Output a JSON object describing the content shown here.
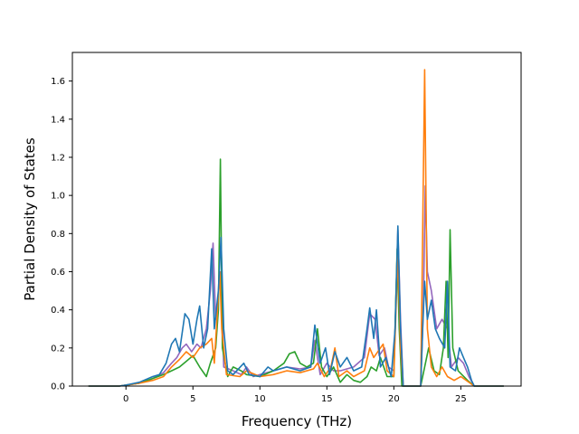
{
  "chart_data": {
    "type": "line",
    "title": "",
    "xlabel": "Frequency (THz)",
    "ylabel": "Partial Density of States",
    "xlim": [
      -4.0,
      29.5
    ],
    "ylim": [
      0.0,
      1.75
    ],
    "xticks": [
      0,
      5,
      10,
      15,
      20,
      25
    ],
    "yticks": [
      0.0,
      0.2,
      0.4,
      0.6,
      0.8,
      1.0,
      1.2,
      1.4,
      1.6
    ],
    "xtick_labels": [
      "0",
      "5",
      "10",
      "15",
      "20",
      "25"
    ],
    "ytick_labels": [
      "0.0",
      "0.2",
      "0.4",
      "0.6",
      "0.8",
      "1.0",
      "1.2",
      "1.4",
      "1.6"
    ],
    "grid": false,
    "legend": "none",
    "series": [
      {
        "color": "#9467bd",
        "points": [
          [
            -2.8,
            0
          ],
          [
            -0.5,
            0
          ],
          [
            0,
            0.005
          ],
          [
            1,
            0.015
          ],
          [
            2,
            0.04
          ],
          [
            2.8,
            0.07
          ],
          [
            3.4,
            0.12
          ],
          [
            3.8,
            0.15
          ],
          [
            4.2,
            0.2
          ],
          [
            4.5,
            0.22
          ],
          [
            4.9,
            0.18
          ],
          [
            5.3,
            0.22
          ],
          [
            5.6,
            0.2
          ],
          [
            6.0,
            0.3
          ],
          [
            6.3,
            0.5
          ],
          [
            6.5,
            0.75
          ],
          [
            6.7,
            0.35
          ],
          [
            7.0,
            0.55
          ],
          [
            7.1,
            0.6
          ],
          [
            7.3,
            0.1
          ],
          [
            8,
            0.08
          ],
          [
            8.6,
            0.06
          ],
          [
            9,
            0.1
          ],
          [
            9.5,
            0.05
          ],
          [
            10,
            0.06
          ],
          [
            11,
            0.08
          ],
          [
            12,
            0.1
          ],
          [
            13,
            0.09
          ],
          [
            13.8,
            0.1
          ],
          [
            14.1,
            0.24
          ],
          [
            14.5,
            0.06
          ],
          [
            15,
            0.12
          ],
          [
            15.5,
            0.08
          ],
          [
            16,
            0.08
          ],
          [
            17,
            0.1
          ],
          [
            17.8,
            0.15
          ],
          [
            18.2,
            0.38
          ],
          [
            18.6,
            0.35
          ],
          [
            18.9,
            0.16
          ],
          [
            19.3,
            0.2
          ],
          [
            19.6,
            0.1
          ],
          [
            20,
            0.08
          ],
          [
            20.3,
            0.82
          ],
          [
            20.5,
            0.35
          ],
          [
            20.7,
            0
          ],
          [
            22.0,
            0
          ],
          [
            22.2,
            0.4
          ],
          [
            22.35,
            1.05
          ],
          [
            22.5,
            0.6
          ],
          [
            22.8,
            0.5
          ],
          [
            23.2,
            0.3
          ],
          [
            23.6,
            0.35
          ],
          [
            24.0,
            0.3
          ],
          [
            24.3,
            0.1
          ],
          [
            24.8,
            0.15
          ],
          [
            25.2,
            0.12
          ],
          [
            25.6,
            0.05
          ],
          [
            26,
            0
          ],
          [
            28.2,
            0
          ]
        ]
      },
      {
        "color": "#2ca02c",
        "points": [
          [
            -2.8,
            0
          ],
          [
            -0.5,
            0
          ],
          [
            0,
            0.005
          ],
          [
            1,
            0.015
          ],
          [
            2,
            0.04
          ],
          [
            2.8,
            0.06
          ],
          [
            3.4,
            0.08
          ],
          [
            4,
            0.1
          ],
          [
            4.5,
            0.13
          ],
          [
            5,
            0.16
          ],
          [
            5.5,
            0.1
          ],
          [
            6.0,
            0.05
          ],
          [
            6.3,
            0.12
          ],
          [
            6.7,
            0.2
          ],
          [
            6.9,
            0.4
          ],
          [
            7.05,
            1.19
          ],
          [
            7.2,
            0.2
          ],
          [
            7.6,
            0.05
          ],
          [
            8,
            0.1
          ],
          [
            8.6,
            0.08
          ],
          [
            9,
            0.06
          ],
          [
            10,
            0.05
          ],
          [
            11,
            0.08
          ],
          [
            11.8,
            0.12
          ],
          [
            12.2,
            0.17
          ],
          [
            12.6,
            0.18
          ],
          [
            13,
            0.12
          ],
          [
            13.5,
            0.1
          ],
          [
            14,
            0.12
          ],
          [
            14.3,
            0.3
          ],
          [
            14.6,
            0.1
          ],
          [
            15,
            0.05
          ],
          [
            15.5,
            0.1
          ],
          [
            16,
            0.02
          ],
          [
            16.5,
            0.06
          ],
          [
            17,
            0.03
          ],
          [
            17.5,
            0.02
          ],
          [
            18,
            0.05
          ],
          [
            18.3,
            0.1
          ],
          [
            18.7,
            0.08
          ],
          [
            19,
            0.15
          ],
          [
            19.5,
            0.05
          ],
          [
            20,
            0.05
          ],
          [
            20.25,
            0.72
          ],
          [
            20.4,
            0.3
          ],
          [
            20.6,
            0
          ],
          [
            22.0,
            0
          ],
          [
            22.3,
            0.1
          ],
          [
            22.6,
            0.2
          ],
          [
            23.0,
            0.08
          ],
          [
            23.4,
            0.06
          ],
          [
            23.7,
            0.2
          ],
          [
            23.9,
            0.55
          ],
          [
            24.05,
            0.15
          ],
          [
            24.2,
            0.82
          ],
          [
            24.4,
            0.2
          ],
          [
            24.8,
            0.08
          ],
          [
            25.5,
            0.03
          ],
          [
            26,
            0
          ],
          [
            28.2,
            0
          ]
        ]
      },
      {
        "color": "#ff7f0e",
        "points": [
          [
            -2.8,
            0
          ],
          [
            -0.5,
            0
          ],
          [
            0,
            0.005
          ],
          [
            1,
            0.015
          ],
          [
            2,
            0.03
          ],
          [
            2.8,
            0.05
          ],
          [
            3.4,
            0.1
          ],
          [
            4,
            0.14
          ],
          [
            4.5,
            0.18
          ],
          [
            5,
            0.15
          ],
          [
            5.5,
            0.2
          ],
          [
            6,
            0.22
          ],
          [
            6.4,
            0.25
          ],
          [
            6.6,
            0.12
          ],
          [
            7.0,
            0.6
          ],
          [
            7.15,
            0.3
          ],
          [
            7.5,
            0.06
          ],
          [
            8.5,
            0.05
          ],
          [
            9,
            0.08
          ],
          [
            10,
            0.05
          ],
          [
            11,
            0.06
          ],
          [
            12,
            0.08
          ],
          [
            13,
            0.07
          ],
          [
            14,
            0.09
          ],
          [
            14.3,
            0.12
          ],
          [
            14.8,
            0.05
          ],
          [
            15.3,
            0.1
          ],
          [
            15.6,
            0.2
          ],
          [
            15.9,
            0.05
          ],
          [
            16.5,
            0.08
          ],
          [
            17,
            0.05
          ],
          [
            17.8,
            0.08
          ],
          [
            18.2,
            0.2
          ],
          [
            18.5,
            0.15
          ],
          [
            19.0,
            0.2
          ],
          [
            19.2,
            0.22
          ],
          [
            19.5,
            0.08
          ],
          [
            20,
            0.05
          ],
          [
            20.3,
            0.7
          ],
          [
            20.5,
            0.2
          ],
          [
            20.7,
            0
          ],
          [
            22.0,
            0
          ],
          [
            22.1,
            0.5
          ],
          [
            22.3,
            1.66
          ],
          [
            22.5,
            0.3
          ],
          [
            22.8,
            0.1
          ],
          [
            23.2,
            0.05
          ],
          [
            23.6,
            0.1
          ],
          [
            24.0,
            0.05
          ],
          [
            24.5,
            0.03
          ],
          [
            25,
            0.05
          ],
          [
            26,
            0
          ],
          [
            28.2,
            0
          ]
        ]
      },
      {
        "color": "#1f77b4",
        "points": [
          [
            -2.8,
            0
          ],
          [
            -0.5,
            0
          ],
          [
            0,
            0.005
          ],
          [
            1,
            0.02
          ],
          [
            2,
            0.05
          ],
          [
            2.5,
            0.06
          ],
          [
            3,
            0.12
          ],
          [
            3.4,
            0.22
          ],
          [
            3.7,
            0.25
          ],
          [
            4.0,
            0.18
          ],
          [
            4.4,
            0.38
          ],
          [
            4.7,
            0.35
          ],
          [
            5,
            0.22
          ],
          [
            5.3,
            0.35
          ],
          [
            5.5,
            0.42
          ],
          [
            5.8,
            0.2
          ],
          [
            6.1,
            0.3
          ],
          [
            6.4,
            0.72
          ],
          [
            6.6,
            0.3
          ],
          [
            6.9,
            0.5
          ],
          [
            7.1,
            0.78
          ],
          [
            7.3,
            0.3
          ],
          [
            7.6,
            0.08
          ],
          [
            8,
            0.06
          ],
          [
            8.8,
            0.12
          ],
          [
            9.2,
            0.06
          ],
          [
            10,
            0.05
          ],
          [
            10.6,
            0.1
          ],
          [
            11,
            0.08
          ],
          [
            12,
            0.1
          ],
          [
            13,
            0.08
          ],
          [
            13.8,
            0.1
          ],
          [
            14.1,
            0.32
          ],
          [
            14.5,
            0.12
          ],
          [
            14.9,
            0.2
          ],
          [
            15.2,
            0.06
          ],
          [
            15.6,
            0.18
          ],
          [
            16,
            0.1
          ],
          [
            16.5,
            0.15
          ],
          [
            17,
            0.08
          ],
          [
            17.6,
            0.1
          ],
          [
            18.0,
            0.3
          ],
          [
            18.2,
            0.41
          ],
          [
            18.5,
            0.25
          ],
          [
            18.7,
            0.4
          ],
          [
            19.0,
            0.1
          ],
          [
            19.4,
            0.15
          ],
          [
            19.8,
            0.05
          ],
          [
            20.1,
            0.3
          ],
          [
            20.3,
            0.84
          ],
          [
            20.5,
            0.3
          ],
          [
            20.7,
            0
          ],
          [
            22.0,
            0
          ],
          [
            22.15,
            0.3
          ],
          [
            22.3,
            0.55
          ],
          [
            22.5,
            0.35
          ],
          [
            22.8,
            0.45
          ],
          [
            23.1,
            0.3
          ],
          [
            23.4,
            0.25
          ],
          [
            23.8,
            0.2
          ],
          [
            24.0,
            0.55
          ],
          [
            24.2,
            0.1
          ],
          [
            24.6,
            0.08
          ],
          [
            24.9,
            0.2
          ],
          [
            25.2,
            0.15
          ],
          [
            25.5,
            0.1
          ],
          [
            25.8,
            0.03
          ],
          [
            26,
            0
          ],
          [
            28.2,
            0
          ]
        ]
      }
    ]
  }
}
